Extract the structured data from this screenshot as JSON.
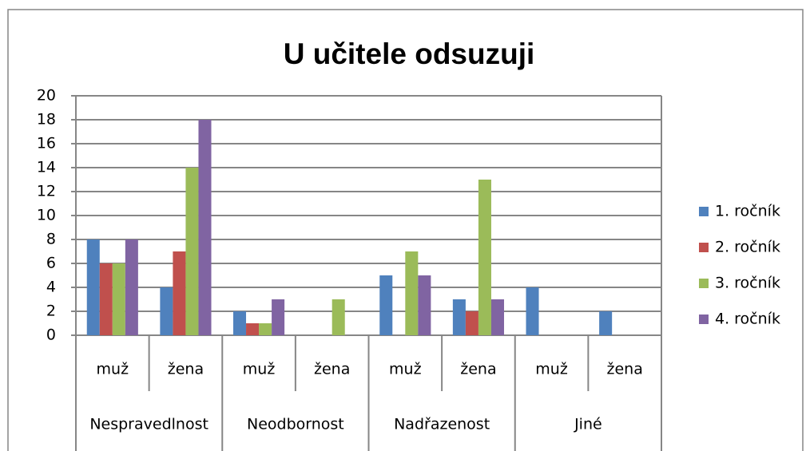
{
  "chart_data": {
    "type": "bar",
    "title": "U učitele odsuzuji",
    "categories": [
      "muž",
      "žena",
      "muž",
      "žena",
      "muž",
      "žena",
      "muž",
      "žena"
    ],
    "groups": [
      "Nespravedlnost",
      "Neodbornost",
      "Nadřazenost",
      "Jiné"
    ],
    "series": [
      {
        "name": "1. ročník",
        "color": "#4f81bd",
        "values": [
          8,
          4,
          2,
          0,
          5,
          3,
          4,
          2
        ]
      },
      {
        "name": "2. ročník",
        "color": "#c0504d",
        "values": [
          6,
          7,
          1,
          0,
          0,
          2,
          0,
          0
        ]
      },
      {
        "name": "3. ročník",
        "color": "#9bbb59",
        "values": [
          6,
          14,
          1,
          3,
          7,
          13,
          0,
          0
        ]
      },
      {
        "name": "4. ročník",
        "color": "#8064a2",
        "values": [
          8,
          18,
          3,
          0,
          5,
          3,
          0,
          0
        ]
      }
    ],
    "ylim": [
      0,
      20
    ],
    "yticks": [
      0,
      2,
      4,
      6,
      8,
      10,
      12,
      14,
      16,
      18,
      20
    ],
    "grid": true,
    "legend": "right"
  }
}
